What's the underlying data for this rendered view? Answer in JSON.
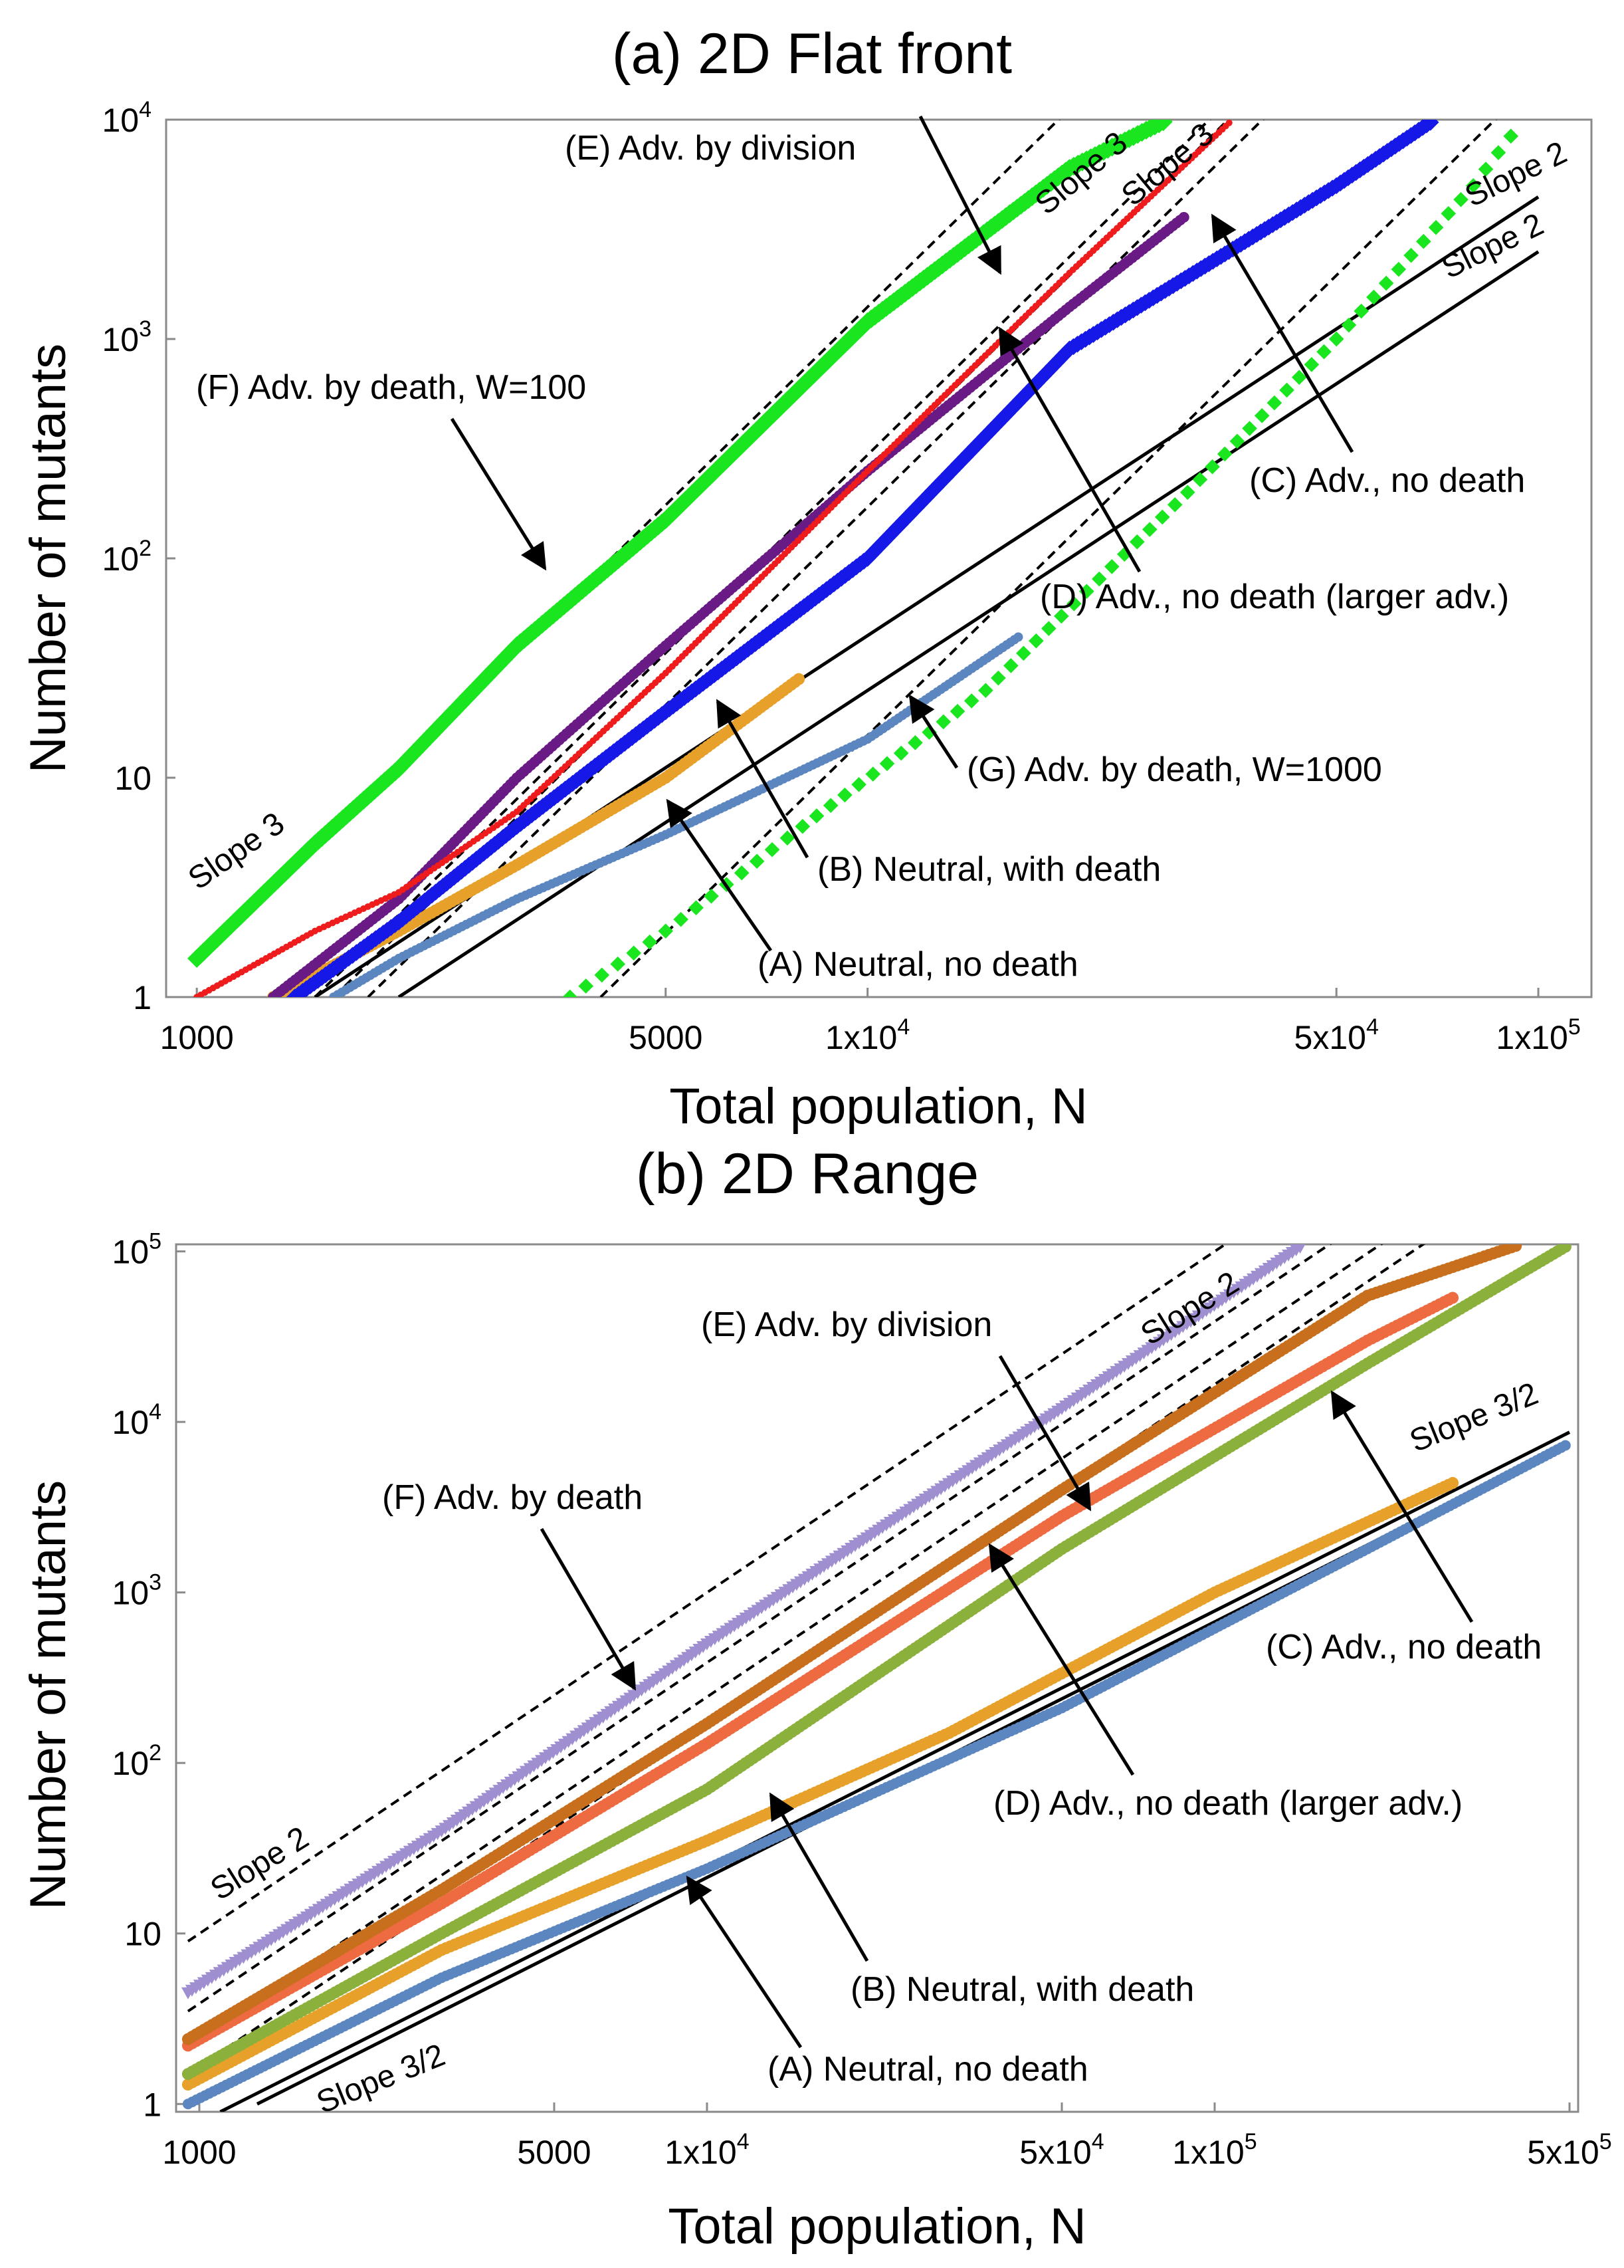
{
  "chart_data": [
    {
      "type": "scatter",
      "title": "(a) 2D Flat front",
      "xlabel": "Total population, N",
      "ylabel": "Number of mutants",
      "xscale": "log",
      "yscale": "log",
      "xlim": [
        900,
        120000
      ],
      "ylim": [
        1,
        10000
      ],
      "xticks": [
        {
          "value": 1000,
          "label": "1000",
          "base": "",
          "exp": ""
        },
        {
          "value": 5000,
          "label": "5000",
          "base": "",
          "exp": ""
        },
        {
          "value": 10000,
          "label": "",
          "base": "1x10",
          "exp": "4"
        },
        {
          "value": 50000,
          "label": "",
          "base": "5x10",
          "exp": "4"
        },
        {
          "value": 100000,
          "label": "",
          "base": "1x10",
          "exp": "5"
        }
      ],
      "yticks": [
        {
          "value": 1,
          "label": "1",
          "base": "",
          "exp": ""
        },
        {
          "value": 10,
          "label": "10",
          "base": "",
          "exp": ""
        },
        {
          "value": 100,
          "label": "",
          "base": "10",
          "exp": "2"
        },
        {
          "value": 1000,
          "label": "",
          "base": "10",
          "exp": "3"
        },
        {
          "value": 10000,
          "label": "",
          "base": "10",
          "exp": "4"
        }
      ],
      "series": [
        {
          "name": "(A) Neutral, no death",
          "color": "#5b86c0",
          "points": [
            [
              1600,
              1
            ],
            [
              2000,
              1.5
            ],
            [
              3000,
              2.8
            ],
            [
              5000,
              5.5
            ],
            [
              10000,
              15
            ],
            [
              17000,
              45
            ]
          ]
        },
        {
          "name": "(B) Neutral, with death",
          "color": "#e7a12a",
          "points": [
            [
              1300,
              1
            ],
            [
              2000,
              2
            ],
            [
              3000,
              4
            ],
            [
              5000,
              10
            ],
            [
              8000,
              29
            ]
          ]
        },
        {
          "name": "(C) Adv., no death",
          "color": "#1518e6",
          "points": [
            [
              1400,
              1
            ],
            [
              2000,
              2.2
            ],
            [
              3000,
              6
            ],
            [
              5000,
              20
            ],
            [
              10000,
              100
            ],
            [
              20000,
              900
            ],
            [
              50000,
              5000
            ],
            [
              70000,
              10000
            ]
          ]
        },
        {
          "name": "(D) Adv., no death (larger adv.)",
          "color": "#6a1a85",
          "points": [
            [
              1300,
              1
            ],
            [
              2000,
              2.8
            ],
            [
              3000,
              10
            ],
            [
              5000,
              40
            ],
            [
              10000,
              250
            ],
            [
              20000,
              1400
            ],
            [
              30000,
              3700
            ]
          ]
        },
        {
          "name": "(E) Adv. by division",
          "color": "#ee1c1c",
          "points": [
            [
              1000,
              1
            ],
            [
              1500,
              2
            ],
            [
              2000,
              3
            ],
            [
              3000,
              7
            ],
            [
              5000,
              30
            ],
            [
              10000,
              250
            ],
            [
              20000,
              2000
            ],
            [
              35000,
              10000
            ]
          ]
        },
        {
          "name": "(F) Adv. by death, W=100",
          "color": "#19e61e",
          "points": [
            [
              1000,
              1.5
            ],
            [
              1500,
              5
            ],
            [
              2000,
              11
            ],
            [
              3000,
              40
            ],
            [
              5000,
              150
            ],
            [
              10000,
              1200
            ],
            [
              20000,
              6000
            ],
            [
              28000,
              10000
            ]
          ]
        },
        {
          "name": "(G) Adv. by death, W=1000",
          "color": "#19e61e",
          "points": [
            [
              3600,
              1
            ],
            [
              5000,
              2
            ],
            [
              8000,
              6
            ],
            [
              15000,
              25
            ],
            [
              30000,
              200
            ],
            [
              50000,
              1000
            ],
            [
              80000,
              5000
            ],
            [
              95000,
              10000
            ]
          ]
        }
      ],
      "annotations": [
        {
          "text": "(A) Neutral, no death"
        },
        {
          "text": "(B) Neutral, with death"
        },
        {
          "text": "(C) Adv., no death"
        },
        {
          "text": "(D) Adv., no death (larger adv.)"
        },
        {
          "text": "(E) Adv. by division"
        },
        {
          "text": "(F) Adv. by death, W=100"
        },
        {
          "text": "(G) Adv. by death, W=1000"
        }
      ],
      "slope_labels": [
        "Slope 3",
        "Slope 3",
        "Slope 3",
        "Slope 2",
        "Slope 2"
      ]
    },
    {
      "type": "scatter",
      "title": "(b) 2D Range",
      "xlabel": "Total population, N",
      "ylabel": "Number of mutants",
      "xscale": "log",
      "yscale": "log",
      "xlim": [
        900,
        520000
      ],
      "ylim": [
        0.9,
        110000
      ],
      "xticks": [
        {
          "value": 1000,
          "label": "1000",
          "base": "",
          "exp": ""
        },
        {
          "value": 5000,
          "label": "5000",
          "base": "",
          "exp": ""
        },
        {
          "value": 10000,
          "label": "",
          "base": "1x10",
          "exp": "4"
        },
        {
          "value": 50000,
          "label": "",
          "base": "5x10",
          "exp": "4"
        },
        {
          "value": 100000,
          "label": "",
          "base": "1x10",
          "exp": "5"
        },
        {
          "value": 500000,
          "label": "",
          "base": "5x10",
          "exp": "5"
        }
      ],
      "yticks": [
        {
          "value": 1,
          "label": "1",
          "base": "",
          "exp": ""
        },
        {
          "value": 10,
          "label": "10",
          "base": "",
          "exp": ""
        },
        {
          "value": 100,
          "label": "",
          "base": "10",
          "exp": "2"
        },
        {
          "value": 1000,
          "label": "",
          "base": "10",
          "exp": "3"
        },
        {
          "value": 10000,
          "label": "",
          "base": "10",
          "exp": "4"
        },
        {
          "value": 100000,
          "label": "",
          "base": "10",
          "exp": "5"
        }
      ],
      "series": [
        {
          "name": "(A) Neutral, no death",
          "color": "#5b86c0",
          "points": [
            [
              950,
              1
            ],
            [
              3000,
              5.5
            ],
            [
              10000,
              24
            ],
            [
              50000,
              210
            ],
            [
              200000,
              1800
            ],
            [
              500000,
              7500
            ]
          ]
        },
        {
          "name": "(B) Neutral, with death",
          "color": "#e7a12a",
          "points": [
            [
              950,
              1.3
            ],
            [
              3000,
              8
            ],
            [
              10000,
              35
            ],
            [
              30000,
              150
            ],
            [
              100000,
              1000
            ],
            [
              300000,
              4500
            ]
          ]
        },
        {
          "name": "(C) Adv., no death",
          "color": "#8bb03b",
          "points": [
            [
              950,
              1.5
            ],
            [
              3000,
              10
            ],
            [
              10000,
              70
            ],
            [
              50000,
              1800
            ],
            [
              200000,
              22000
            ],
            [
              500000,
              110000
            ]
          ]
        },
        {
          "name": "(D) Adv., no death (larger adv.)",
          "color": "#ee6a40",
          "points": [
            [
              950,
              2.2
            ],
            [
              3000,
              15
            ],
            [
              10000,
              130
            ],
            [
              50000,
              2800
            ],
            [
              200000,
              30000
            ],
            [
              300000,
              55000
            ]
          ]
        },
        {
          "name": "(E) Adv. by division",
          "color": "#c86f1e",
          "points": [
            [
              950,
              2.4
            ],
            [
              3000,
              18
            ],
            [
              10000,
              170
            ],
            [
              50000,
              4000
            ],
            [
              200000,
              55000
            ],
            [
              400000,
              110000
            ]
          ]
        },
        {
          "name": "(F) Adv. by death",
          "color": "#9f8fd0",
          "points": [
            [
              950,
              4.5
            ],
            [
              3000,
              40
            ],
            [
              10000,
              500
            ],
            [
              50000,
              12000
            ],
            [
              150000,
              110000
            ]
          ]
        }
      ],
      "annotations": [
        {
          "text": "(A) Neutral, no death"
        },
        {
          "text": "(B) Neutral, with death"
        },
        {
          "text": "(C) Adv., no death"
        },
        {
          "text": "(D) Adv., no death (larger adv.)"
        },
        {
          "text": "(E) Adv. by division"
        },
        {
          "text": "(F) Adv. by death"
        }
      ],
      "slope_labels": [
        "Slope 2",
        "Slope 2",
        "Slope 3/2",
        "Slope 3/2"
      ]
    }
  ]
}
